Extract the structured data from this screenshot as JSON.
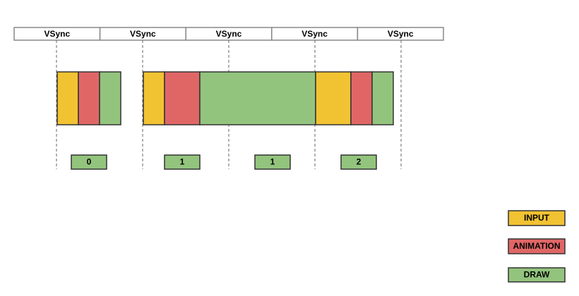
{
  "vsync": [
    "VSync",
    "VSync",
    "VSync",
    "VSync",
    "VSync"
  ],
  "frames": [
    "0",
    "1",
    "1",
    "2"
  ],
  "legend": [
    "INPUT",
    "ANIMATION",
    "DRAW"
  ]
}
